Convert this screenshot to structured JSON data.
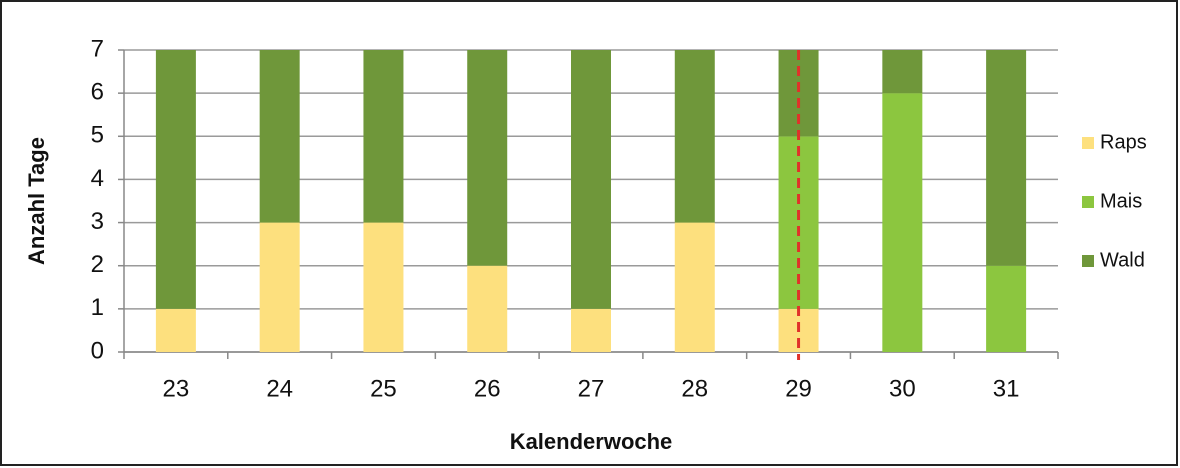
{
  "chart_data": {
    "type": "stacked_bar",
    "x_label": "Kalenderwoche",
    "y_label": "Anzahl Tage",
    "categories": [
      "23",
      "24",
      "25",
      "26",
      "27",
      "28",
      "29",
      "30",
      "31"
    ],
    "series": [
      {
        "name": "Raps",
        "color": "#fde07e",
        "values": [
          1,
          3,
          3,
          2,
          1,
          3,
          1,
          0,
          0
        ]
      },
      {
        "name": "Mais",
        "color": "#8cc63f",
        "values": [
          0,
          0,
          0,
          0,
          0,
          0,
          4,
          6,
          2
        ]
      },
      {
        "name": "Wald",
        "color": "#6f973a",
        "values": [
          6,
          4,
          4,
          5,
          6,
          4,
          2,
          1,
          5
        ]
      }
    ],
    "ylim": [
      0,
      7
    ],
    "yticks": [
      0,
      1,
      2,
      3,
      4,
      5,
      6,
      7
    ],
    "grid": true,
    "legend": "right",
    "reference_line": {
      "category": "29",
      "color": "#e0322a",
      "style": "dashed"
    }
  }
}
